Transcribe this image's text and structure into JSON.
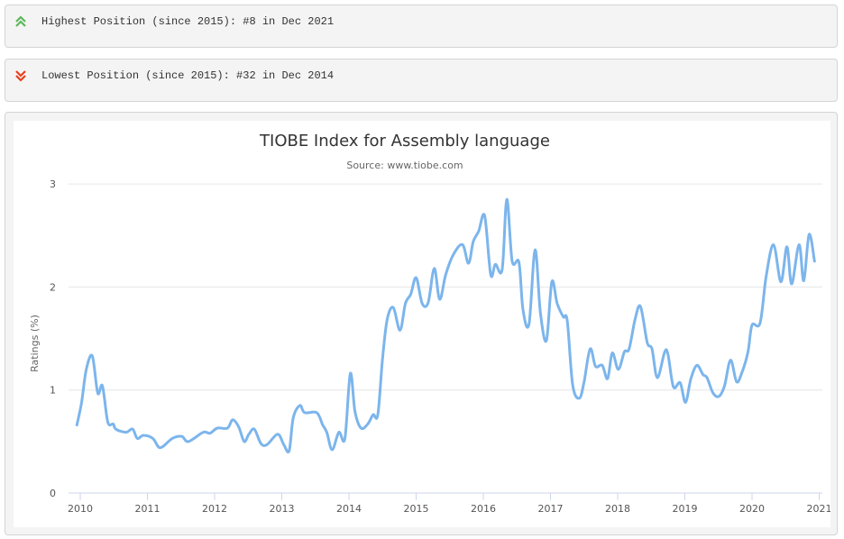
{
  "highest": {
    "icon": "double-chevron-up-icon",
    "text": "Highest Position (since 2015): #8 in Dec 2021",
    "color": "#5cb85c"
  },
  "lowest": {
    "icon": "double-chevron-down-icon",
    "text": "Lowest Position (since 2015): #32 in Dec 2014",
    "color": "#e8401c"
  },
  "chart_data": {
    "type": "line",
    "title": "TIOBE Index for Assembly language",
    "subtitle": "Source: www.tiobe.com",
    "ylabel": "Ratings (%)",
    "xlabel": "",
    "ylim": [
      0,
      3
    ],
    "xlim": [
      2009.84,
      2021.05
    ],
    "yticks": [
      "0",
      "1",
      "2",
      "3"
    ],
    "xticks": [
      "2010",
      "2011",
      "2012",
      "2013",
      "2014",
      "2015",
      "2016",
      "2017",
      "2018",
      "2019",
      "2020",
      "2021"
    ],
    "grid": true,
    "line_color": "#7cb5ec",
    "series": [
      {
        "points": [
          [
            2009.95,
            0.66
          ],
          [
            2010.02,
            0.88
          ],
          [
            2010.09,
            1.2
          ],
          [
            2010.18,
            1.33
          ],
          [
            2010.26,
            0.97
          ],
          [
            2010.33,
            1.04
          ],
          [
            2010.41,
            0.69
          ],
          [
            2010.49,
            0.67
          ],
          [
            2010.53,
            0.62
          ],
          [
            2010.68,
            0.59
          ],
          [
            2010.78,
            0.62
          ],
          [
            2010.85,
            0.53
          ],
          [
            2010.94,
            0.56
          ],
          [
            2011.08,
            0.53
          ],
          [
            2011.19,
            0.44
          ],
          [
            2011.37,
            0.53
          ],
          [
            2011.51,
            0.55
          ],
          [
            2011.61,
            0.5
          ],
          [
            2011.83,
            0.59
          ],
          [
            2011.93,
            0.58
          ],
          [
            2012.04,
            0.63
          ],
          [
            2012.19,
            0.63
          ],
          [
            2012.27,
            0.71
          ],
          [
            2012.36,
            0.64
          ],
          [
            2012.44,
            0.5
          ],
          [
            2012.51,
            0.57
          ],
          [
            2012.59,
            0.62
          ],
          [
            2012.69,
            0.48
          ],
          [
            2012.78,
            0.47
          ],
          [
            2012.94,
            0.57
          ],
          [
            2013.03,
            0.47
          ],
          [
            2013.11,
            0.41
          ],
          [
            2013.17,
            0.73
          ],
          [
            2013.27,
            0.85
          ],
          [
            2013.34,
            0.78
          ],
          [
            2013.52,
            0.78
          ],
          [
            2013.61,
            0.66
          ],
          [
            2013.67,
            0.59
          ],
          [
            2013.75,
            0.42
          ],
          [
            2013.85,
            0.59
          ],
          [
            2013.94,
            0.53
          ],
          [
            2014.02,
            1.16
          ],
          [
            2014.09,
            0.79
          ],
          [
            2014.18,
            0.63
          ],
          [
            2014.28,
            0.67
          ],
          [
            2014.36,
            0.76
          ],
          [
            2014.43,
            0.76
          ],
          [
            2014.5,
            1.31
          ],
          [
            2014.57,
            1.69
          ],
          [
            2014.66,
            1.8
          ],
          [
            2014.76,
            1.58
          ],
          [
            2014.84,
            1.84
          ],
          [
            2014.92,
            1.93
          ],
          [
            2015.0,
            2.09
          ],
          [
            2015.09,
            1.84
          ],
          [
            2015.18,
            1.85
          ],
          [
            2015.27,
            2.18
          ],
          [
            2015.35,
            1.88
          ],
          [
            2015.44,
            2.12
          ],
          [
            2015.55,
            2.31
          ],
          [
            2015.69,
            2.41
          ],
          [
            2015.78,
            2.23
          ],
          [
            2015.85,
            2.44
          ],
          [
            2015.93,
            2.54
          ],
          [
            2016.02,
            2.69
          ],
          [
            2016.11,
            2.12
          ],
          [
            2016.18,
            2.22
          ],
          [
            2016.28,
            2.17
          ],
          [
            2016.35,
            2.85
          ],
          [
            2016.43,
            2.25
          ],
          [
            2016.53,
            2.24
          ],
          [
            2016.59,
            1.78
          ],
          [
            2016.68,
            1.64
          ],
          [
            2016.77,
            2.36
          ],
          [
            2016.85,
            1.75
          ],
          [
            2016.94,
            1.48
          ],
          [
            2017.02,
            2.05
          ],
          [
            2017.1,
            1.84
          ],
          [
            2017.19,
            1.71
          ],
          [
            2017.25,
            1.67
          ],
          [
            2017.33,
            1.05
          ],
          [
            2017.43,
            0.92
          ],
          [
            2017.5,
            1.08
          ],
          [
            2017.59,
            1.4
          ],
          [
            2017.67,
            1.23
          ],
          [
            2017.77,
            1.24
          ],
          [
            2017.85,
            1.11
          ],
          [
            2017.92,
            1.36
          ],
          [
            2018.01,
            1.2
          ],
          [
            2018.1,
            1.37
          ],
          [
            2018.17,
            1.4
          ],
          [
            2018.26,
            1.69
          ],
          [
            2018.34,
            1.81
          ],
          [
            2018.44,
            1.46
          ],
          [
            2018.51,
            1.4
          ],
          [
            2018.59,
            1.12
          ],
          [
            2018.7,
            1.37
          ],
          [
            2018.75,
            1.34
          ],
          [
            2018.83,
            1.03
          ],
          [
            2018.93,
            1.07
          ],
          [
            2019.01,
            0.88
          ],
          [
            2019.09,
            1.11
          ],
          [
            2019.18,
            1.24
          ],
          [
            2019.27,
            1.15
          ],
          [
            2019.33,
            1.12
          ],
          [
            2019.42,
            0.97
          ],
          [
            2019.51,
            0.94
          ],
          [
            2019.59,
            1.04
          ],
          [
            2019.68,
            1.29
          ],
          [
            2019.77,
            1.08
          ],
          [
            2019.85,
            1.17
          ],
          [
            2019.94,
            1.37
          ],
          [
            2020.0,
            1.63
          ],
          [
            2020.12,
            1.65
          ],
          [
            2020.21,
            2.1
          ],
          [
            2020.32,
            2.41
          ],
          [
            2020.43,
            2.05
          ],
          [
            2020.52,
            2.39
          ],
          [
            2020.59,
            2.03
          ],
          [
            2020.7,
            2.41
          ],
          [
            2020.77,
            2.06
          ],
          [
            2020.85,
            2.51
          ],
          [
            2020.93,
            2.25
          ]
        ]
      }
    ]
  }
}
